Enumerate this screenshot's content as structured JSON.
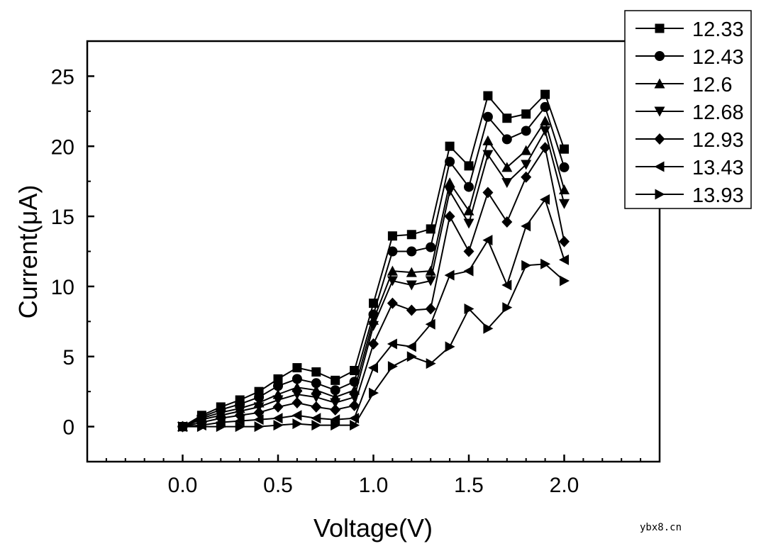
{
  "chart_data": {
    "type": "line",
    "title": "",
    "xlabel": "Voltage(V)",
    "ylabel": "Current(μA)",
    "xlim": [
      -0.5,
      2.5
    ],
    "ylim": [
      -2.5,
      27.5
    ],
    "x_ticks": [
      "0.0",
      "0.5",
      "1.0",
      "1.5",
      "2.0"
    ],
    "y_ticks": [
      "0",
      "5",
      "10",
      "15",
      "20",
      "25"
    ],
    "grid": false,
    "legend_position": "top-right",
    "x": [
      0.0,
      0.1,
      0.2,
      0.3,
      0.4,
      0.5,
      0.6,
      0.7,
      0.8,
      0.9,
      1.0,
      1.1,
      1.2,
      1.3,
      1.4,
      1.5,
      1.6,
      1.7,
      1.8,
      1.9,
      2.0
    ],
    "series": [
      {
        "name": "12.33",
        "marker": "square",
        "values": [
          0,
          0.8,
          1.4,
          1.9,
          2.5,
          3.4,
          4.2,
          3.9,
          3.3,
          4.0,
          8.8,
          13.6,
          13.7,
          14.1,
          20.0,
          18.6,
          23.6,
          22.0,
          22.3,
          23.7,
          19.8
        ]
      },
      {
        "name": "12.43",
        "marker": "circle",
        "values": [
          0,
          0.7,
          1.2,
          1.6,
          2.1,
          2.9,
          3.4,
          3.1,
          2.6,
          3.2,
          8.0,
          12.5,
          12.5,
          12.8,
          18.9,
          17.1,
          22.1,
          20.5,
          21.1,
          22.8,
          18.5
        ]
      },
      {
        "name": "12.6",
        "marker": "triangle-up",
        "values": [
          0,
          0.6,
          1.0,
          1.3,
          1.7,
          2.3,
          2.8,
          2.6,
          2.1,
          2.6,
          7.6,
          11.1,
          11.0,
          11.1,
          17.4,
          15.4,
          20.4,
          18.5,
          19.7,
          21.8,
          16.9
        ]
      },
      {
        "name": "12.68",
        "marker": "triangle-down",
        "values": [
          0,
          0.5,
          0.8,
          1.1,
          1.4,
          1.9,
          2.3,
          2.1,
          1.7,
          2.1,
          7.2,
          10.4,
          10.1,
          10.4,
          16.8,
          14.5,
          19.4,
          17.4,
          18.7,
          21.1,
          15.9
        ]
      },
      {
        "name": "12.93",
        "marker": "diamond",
        "values": [
          0,
          0.3,
          0.6,
          0.8,
          1.0,
          1.4,
          1.7,
          1.4,
          1.2,
          1.5,
          5.9,
          8.8,
          8.3,
          8.4,
          15.0,
          12.5,
          16.7,
          14.6,
          17.8,
          19.9,
          13.2
        ]
      },
      {
        "name": "13.43",
        "marker": "triangle-left",
        "values": [
          0,
          0.1,
          0.3,
          0.4,
          0.5,
          0.6,
          0.8,
          0.6,
          0.5,
          0.6,
          4.2,
          5.9,
          5.7,
          7.3,
          10.8,
          11.1,
          13.3,
          10.1,
          14.3,
          16.2,
          11.9
        ]
      },
      {
        "name": "13.93",
        "marker": "triangle-right",
        "values": [
          0,
          0,
          0,
          0,
          0,
          0.1,
          0.2,
          0.1,
          0.1,
          0.1,
          2.4,
          4.3,
          5.0,
          4.5,
          5.7,
          8.4,
          7.0,
          8.5,
          11.5,
          11.6,
          10.4
        ]
      }
    ]
  },
  "watermark": "ybx8.cn"
}
